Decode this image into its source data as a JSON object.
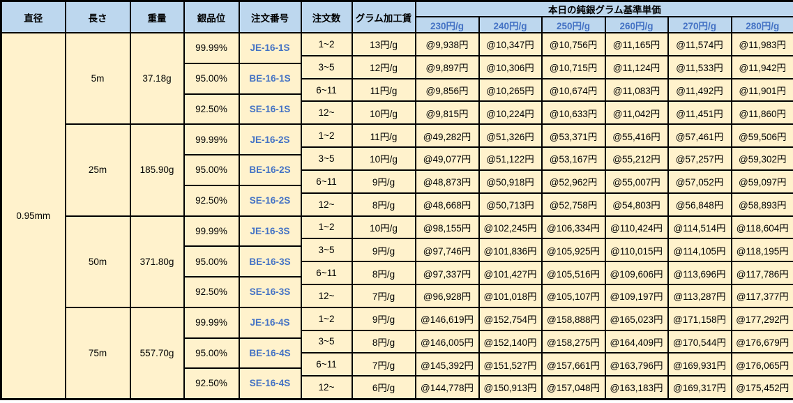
{
  "header": {
    "col_diameter": "直径",
    "col_length": "長さ",
    "col_weight": "重量",
    "col_purity": "銀品位",
    "col_order_no": "注文番号",
    "col_order_qty": "注文数",
    "col_fee": "グラム加工賃",
    "price_group_title": "本日の純銀グラム基準単価",
    "price_cols": [
      "230円/g",
      "240円/g",
      "250円/g",
      "260円/g",
      "270円/g",
      "280円/g"
    ]
  },
  "diameter": "0.95mm",
  "sections": [
    {
      "length": "5m",
      "weight": "37.18g",
      "purities": [
        {
          "purity": "99.99%",
          "order_no": "JE-16-1S"
        },
        {
          "purity": "95.00%",
          "order_no": "BE-16-1S"
        },
        {
          "purity": "92.50%",
          "order_no": "SE-16-1S"
        }
      ],
      "rows": [
        {
          "qty": "1~2",
          "fee": "13円/g",
          "prices": [
            "@9,938円",
            "@10,347円",
            "@10,756円",
            "@11,165円",
            "@11,574円",
            "@11,983円"
          ]
        },
        {
          "qty": "3~5",
          "fee": "12円/g",
          "prices": [
            "@9,897円",
            "@10,306円",
            "@10,715円",
            "@11,124円",
            "@11,533円",
            "@11,942円"
          ]
        },
        {
          "qty": "6~11",
          "fee": "11円/g",
          "prices": [
            "@9,856円",
            "@10,265円",
            "@10,674円",
            "@11,083円",
            "@11,492円",
            "@11,901円"
          ]
        },
        {
          "qty": "12~",
          "fee": "10円/g",
          "prices": [
            "@9,815円",
            "@10,224円",
            "@10,633円",
            "@11,042円",
            "@11,451円",
            "@11,860円"
          ]
        }
      ]
    },
    {
      "length": "25m",
      "weight": "185.90g",
      "purities": [
        {
          "purity": "99.99%",
          "order_no": "JE-16-2S"
        },
        {
          "purity": "95.00%",
          "order_no": "BE-16-2S"
        },
        {
          "purity": "92.50%",
          "order_no": "SE-16-2S"
        }
      ],
      "rows": [
        {
          "qty": "1~2",
          "fee": "11円/g",
          "prices": [
            "@49,282円",
            "@51,326円",
            "@53,371円",
            "@55,416円",
            "@57,461円",
            "@59,506円"
          ]
        },
        {
          "qty": "3~5",
          "fee": "10円/g",
          "prices": [
            "@49,077円",
            "@51,122円",
            "@53,167円",
            "@55,212円",
            "@57,257円",
            "@59,302円"
          ]
        },
        {
          "qty": "6~11",
          "fee": "9円/g",
          "prices": [
            "@48,873円",
            "@50,918円",
            "@52,962円",
            "@55,007円",
            "@57,052円",
            "@59,097円"
          ]
        },
        {
          "qty": "12~",
          "fee": "8円/g",
          "prices": [
            "@48,668円",
            "@50,713円",
            "@52,758円",
            "@54,803円",
            "@56,848円",
            "@58,893円"
          ]
        }
      ]
    },
    {
      "length": "50m",
      "weight": "371.80g",
      "purities": [
        {
          "purity": "99.99%",
          "order_no": "JE-16-3S"
        },
        {
          "purity": "95.00%",
          "order_no": "BE-16-3S"
        },
        {
          "purity": "92.50%",
          "order_no": "SE-16-3S"
        }
      ],
      "rows": [
        {
          "qty": "1~2",
          "fee": "10円/g",
          "prices": [
            "@98,155円",
            "@102,245円",
            "@106,334円",
            "@110,424円",
            "@114,514円",
            "@118,604円"
          ]
        },
        {
          "qty": "3~5",
          "fee": "9円/g",
          "prices": [
            "@97,746円",
            "@101,836円",
            "@105,925円",
            "@110,015円",
            "@114,105円",
            "@118,195円"
          ]
        },
        {
          "qty": "6~11",
          "fee": "8円/g",
          "prices": [
            "@97,337円",
            "@101,427円",
            "@105,516円",
            "@109,606円",
            "@113,696円",
            "@117,786円"
          ]
        },
        {
          "qty": "12~",
          "fee": "7円/g",
          "prices": [
            "@96,928円",
            "@101,018円",
            "@105,107円",
            "@109,197円",
            "@113,287円",
            "@117,377円"
          ]
        }
      ]
    },
    {
      "length": "75m",
      "weight": "557.70g",
      "purities": [
        {
          "purity": "99.99%",
          "order_no": "JE-16-4S"
        },
        {
          "purity": "95.00%",
          "order_no": "BE-16-4S"
        },
        {
          "purity": "92.50%",
          "order_no": "SE-16-4S"
        }
      ],
      "rows": [
        {
          "qty": "1~2",
          "fee": "9円/g",
          "prices": [
            "@146,619円",
            "@152,754円",
            "@158,888円",
            "@165,023円",
            "@171,158円",
            "@177,292円"
          ]
        },
        {
          "qty": "3~5",
          "fee": "8円/g",
          "prices": [
            "@146,005円",
            "@152,140円",
            "@158,275円",
            "@164,409円",
            "@170,544円",
            "@176,679円"
          ]
        },
        {
          "qty": "6~11",
          "fee": "7円/g",
          "prices": [
            "@145,392円",
            "@151,527円",
            "@157,661円",
            "@163,796円",
            "@169,931円",
            "@176,065円"
          ]
        },
        {
          "qty": "12~",
          "fee": "6円/g",
          "prices": [
            "@144,778円",
            "@150,913円",
            "@157,048円",
            "@163,183円",
            "@169,317円",
            "@175,452円"
          ]
        }
      ]
    }
  ],
  "colors": {
    "header_bg": "#BDD7EE",
    "cell_bg": "#FFF2CC",
    "accent_blue_text": "#4472C4",
    "border": "#000000"
  }
}
